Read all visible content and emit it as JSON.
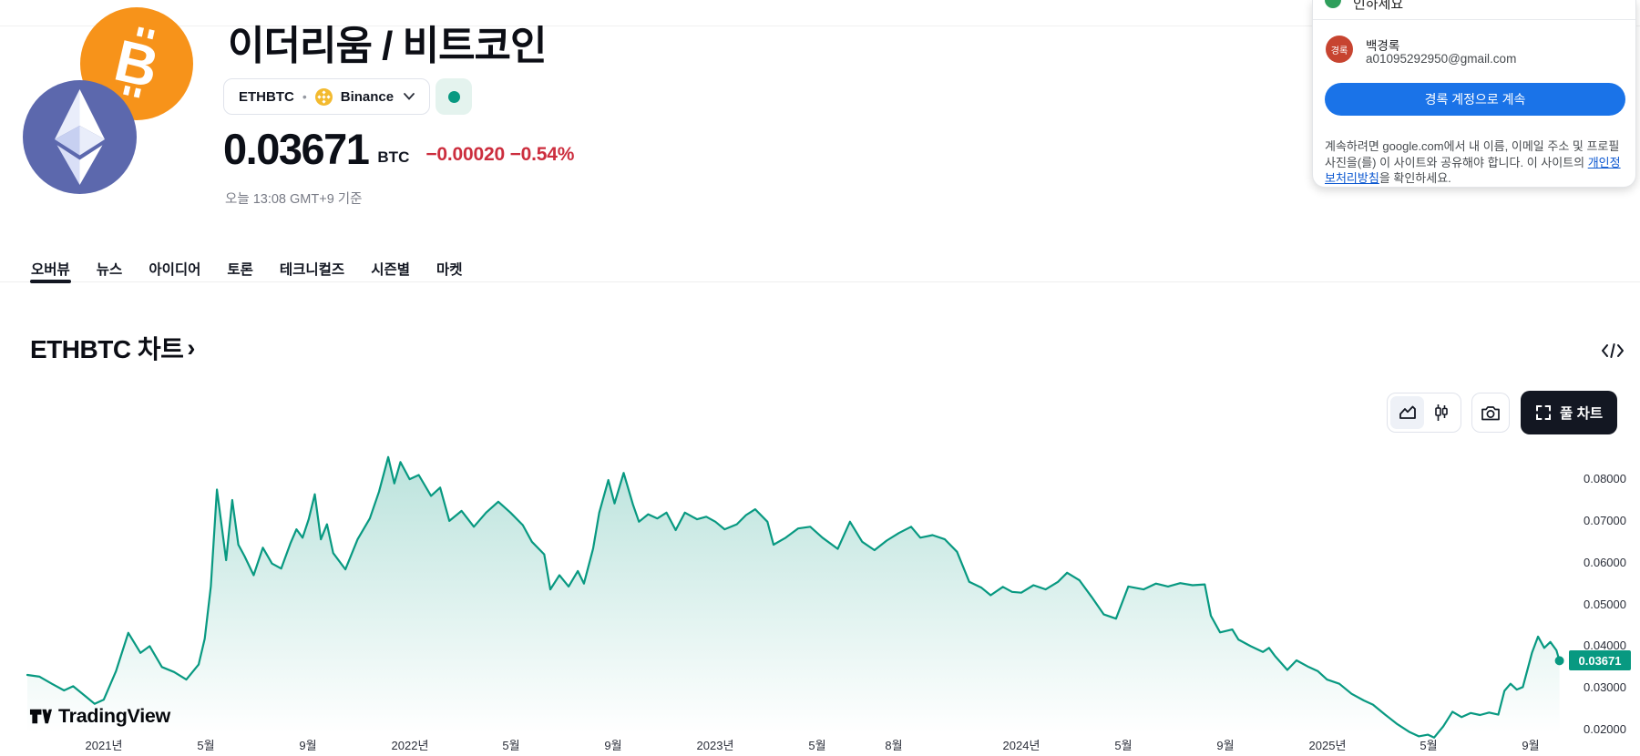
{
  "colors": {
    "accent_teal": "#089981",
    "negative_red": "#cc2e3e",
    "google_blue": "#1a73e8",
    "link_blue": "#0b57d0",
    "binance_gold": "#f3ba2f",
    "bitcoin_orange": "#f7931a",
    "ethereum_slate": "#5c68ad"
  },
  "header": {
    "title": "이더리움 / 비트코인",
    "symbol": "ETHBTC",
    "separator": "•",
    "exchange": "Binance",
    "price": "0.03671",
    "currency": "BTC",
    "change_abs": "−0.00020",
    "change_pct": "−0.54%",
    "timestamp": "오늘 13:08 GMT+9 기준"
  },
  "tabs": [
    {
      "id": "overview",
      "label": "오버뷰",
      "active": true
    },
    {
      "id": "news",
      "label": "뉴스",
      "active": false
    },
    {
      "id": "ideas",
      "label": "아이디어",
      "active": false
    },
    {
      "id": "discussion",
      "label": "토론",
      "active": false
    },
    {
      "id": "technicals",
      "label": "테크니컬즈",
      "active": false
    },
    {
      "id": "seasonal",
      "label": "시즌별",
      "active": false
    },
    {
      "id": "markets",
      "label": "마켓",
      "active": false
    }
  ],
  "section": {
    "heading": "ETHBTC 차트",
    "arrow": "›"
  },
  "toolbar": {
    "full_chart_label": "풀 차트"
  },
  "watermark": {
    "brand": "TradingView"
  },
  "google_popup": {
    "clipped_header_text": "인하세요",
    "account_initials": "경록",
    "account_name": "백경록",
    "account_email": "a01095292950@gmail.com",
    "continue_button": "경록 계정으로 계속",
    "disclaimer_before_link": "계속하려면 google.com에서 내 이름, 이메일 주소 및 프로필 사진을(를) 이 사이트와 공유해야 합니다. 이 사이트의 ",
    "privacy_link": "개인정보처리방침",
    "disclaimer_after_link": "을 확인하세요."
  },
  "chart_data": {
    "type": "area",
    "title": "ETHBTC 차트",
    "pair": "ETH/BTC",
    "legend_position": "none",
    "grid": false,
    "last_price": 0.03671,
    "last_price_label": "0.03671",
    "x_axis": {
      "t_min": 2020.75,
      "t_max": 2025.77,
      "ticks": [
        {
          "label": "2021년",
          "t": 2021.0
        },
        {
          "label": "5월",
          "t": 2021.333
        },
        {
          "label": "9월",
          "t": 2021.667
        },
        {
          "label": "2022년",
          "t": 2022.0
        },
        {
          "label": "5월",
          "t": 2022.333
        },
        {
          "label": "9월",
          "t": 2022.667
        },
        {
          "label": "2023년",
          "t": 2023.0
        },
        {
          "label": "5월",
          "t": 2023.333
        },
        {
          "label": "8월",
          "t": 2023.583
        },
        {
          "label": "2024년",
          "t": 2024.0
        },
        {
          "label": "5월",
          "t": 2024.333
        },
        {
          "label": "9월",
          "t": 2024.667
        },
        {
          "label": "2025년",
          "t": 2025.0
        },
        {
          "label": "5월",
          "t": 2025.333
        },
        {
          "label": "9월",
          "t": 2025.667
        }
      ]
    },
    "y_axis": {
      "min": 0.02,
      "max": 0.08,
      "ticks": [
        {
          "label": "0.08000",
          "v": 0.08
        },
        {
          "label": "0.07000",
          "v": 0.07
        },
        {
          "label": "0.06000",
          "v": 0.06
        },
        {
          "label": "0.05000",
          "v": 0.05
        },
        {
          "label": "0.04000",
          "v": 0.04
        },
        {
          "label": "0.03000",
          "v": 0.03
        },
        {
          "label": "0.02000",
          "v": 0.02
        }
      ]
    },
    "series": [
      [
        2020.75,
        0.0333
      ],
      [
        2020.79,
        0.0329
      ],
      [
        2020.83,
        0.0312
      ],
      [
        2020.87,
        0.0296
      ],
      [
        2020.9,
        0.0306
      ],
      [
        2020.94,
        0.0282
      ],
      [
        2020.97,
        0.0264
      ],
      [
        2021.0,
        0.0274
      ],
      [
        2021.04,
        0.0342
      ],
      [
        2021.08,
        0.0434
      ],
      [
        2021.12,
        0.0386
      ],
      [
        2021.15,
        0.0402
      ],
      [
        2021.19,
        0.0352
      ],
      [
        2021.23,
        0.034
      ],
      [
        2021.27,
        0.0322
      ],
      [
        2021.31,
        0.0358
      ],
      [
        2021.33,
        0.042
      ],
      [
        2021.35,
        0.0545
      ],
      [
        2021.37,
        0.0777
      ],
      [
        2021.4,
        0.0608
      ],
      [
        2021.42,
        0.0752
      ],
      [
        2021.44,
        0.0645
      ],
      [
        2021.46,
        0.0618
      ],
      [
        2021.49,
        0.0572
      ],
      [
        2021.52,
        0.0638
      ],
      [
        2021.55,
        0.06
      ],
      [
        2021.58,
        0.0588
      ],
      [
        2021.61,
        0.0648
      ],
      [
        2021.63,
        0.0682
      ],
      [
        2021.65,
        0.0662
      ],
      [
        2021.67,
        0.0706
      ],
      [
        2021.69,
        0.0766
      ],
      [
        2021.71,
        0.0658
      ],
      [
        2021.73,
        0.0694
      ],
      [
        2021.75,
        0.0625
      ],
      [
        2021.79,
        0.0586
      ],
      [
        2021.83,
        0.0658
      ],
      [
        2021.87,
        0.0708
      ],
      [
        2021.9,
        0.0772
      ],
      [
        2021.93,
        0.0855
      ],
      [
        2021.95,
        0.0792
      ],
      [
        2021.97,
        0.0843
      ],
      [
        2022.0,
        0.0802
      ],
      [
        2022.03,
        0.0812
      ],
      [
        2022.07,
        0.0762
      ],
      [
        2022.1,
        0.0782
      ],
      [
        2022.13,
        0.0702
      ],
      [
        2022.17,
        0.0726
      ],
      [
        2022.21,
        0.0688
      ],
      [
        2022.25,
        0.0722
      ],
      [
        2022.29,
        0.0748
      ],
      [
        2022.33,
        0.0722
      ],
      [
        2022.37,
        0.0692
      ],
      [
        2022.4,
        0.0652
      ],
      [
        2022.44,
        0.0622
      ],
      [
        2022.46,
        0.0538
      ],
      [
        2022.49,
        0.0572
      ],
      [
        2022.52,
        0.0545
      ],
      [
        2022.55,
        0.0582
      ],
      [
        2022.57,
        0.0552
      ],
      [
        2022.6,
        0.0636
      ],
      [
        2022.62,
        0.0722
      ],
      [
        2022.65,
        0.08
      ],
      [
        2022.67,
        0.0744
      ],
      [
        2022.7,
        0.0817
      ],
      [
        2022.73,
        0.0742
      ],
      [
        2022.75,
        0.07
      ],
      [
        2022.78,
        0.0718
      ],
      [
        2022.81,
        0.0708
      ],
      [
        2022.84,
        0.0722
      ],
      [
        2022.87,
        0.068
      ],
      [
        2022.9,
        0.0722
      ],
      [
        2022.94,
        0.0706
      ],
      [
        2022.97,
        0.0712
      ],
      [
        2023.0,
        0.07
      ],
      [
        2023.03,
        0.0682
      ],
      [
        2023.07,
        0.0694
      ],
      [
        2023.1,
        0.0716
      ],
      [
        2023.13,
        0.073
      ],
      [
        2023.17,
        0.07
      ],
      [
        2023.19,
        0.0645
      ],
      [
        2023.23,
        0.0662
      ],
      [
        2023.27,
        0.0684
      ],
      [
        2023.31,
        0.0688
      ],
      [
        2023.35,
        0.0662
      ],
      [
        2023.4,
        0.0635
      ],
      [
        2023.44,
        0.07
      ],
      [
        2023.48,
        0.0652
      ],
      [
        2023.52,
        0.0632
      ],
      [
        2023.56,
        0.0655
      ],
      [
        2023.6,
        0.0673
      ],
      [
        2023.64,
        0.0688
      ],
      [
        2023.67,
        0.0662
      ],
      [
        2023.71,
        0.0668
      ],
      [
        2023.75,
        0.0658
      ],
      [
        2023.79,
        0.0628
      ],
      [
        2023.83,
        0.0556
      ],
      [
        2023.87,
        0.0542
      ],
      [
        2023.9,
        0.0524
      ],
      [
        2023.94,
        0.0544
      ],
      [
        2023.97,
        0.0532
      ],
      [
        2024.0,
        0.053
      ],
      [
        2024.04,
        0.0548
      ],
      [
        2024.08,
        0.0538
      ],
      [
        2024.12,
        0.0556
      ],
      [
        2024.15,
        0.0578
      ],
      [
        2024.19,
        0.056
      ],
      [
        2024.23,
        0.052
      ],
      [
        2024.27,
        0.0478
      ],
      [
        2024.31,
        0.0468
      ],
      [
        2024.35,
        0.0545
      ],
      [
        2024.4,
        0.0538
      ],
      [
        2024.44,
        0.0552
      ],
      [
        2024.48,
        0.0545
      ],
      [
        2024.52,
        0.0553
      ],
      [
        2024.56,
        0.0548
      ],
      [
        2024.6,
        0.055
      ],
      [
        2024.62,
        0.0475
      ],
      [
        2024.65,
        0.0435
      ],
      [
        2024.69,
        0.0442
      ],
      [
        2024.71,
        0.0418
      ],
      [
        2024.75,
        0.0402
      ],
      [
        2024.79,
        0.0388
      ],
      [
        2024.81,
        0.0398
      ],
      [
        2024.83,
        0.0378
      ],
      [
        2024.87,
        0.0345
      ],
      [
        2024.9,
        0.0368
      ],
      [
        2024.94,
        0.0352
      ],
      [
        2024.97,
        0.0342
      ],
      [
        2025.0,
        0.0322
      ],
      [
        2025.04,
        0.0312
      ],
      [
        2025.08,
        0.0288
      ],
      [
        2025.12,
        0.0272
      ],
      [
        2025.15,
        0.0262
      ],
      [
        2025.19,
        0.0238
      ],
      [
        2025.23,
        0.0215
      ],
      [
        2025.27,
        0.0196
      ],
      [
        2025.3,
        0.0186
      ],
      [
        2025.33,
        0.019
      ],
      [
        2025.35,
        0.0183
      ],
      [
        2025.38,
        0.021
      ],
      [
        2025.41,
        0.0245
      ],
      [
        2025.44,
        0.0232
      ],
      [
        2025.47,
        0.0242
      ],
      [
        2025.5,
        0.0237
      ],
      [
        2025.53,
        0.0243
      ],
      [
        2025.56,
        0.0238
      ],
      [
        2025.58,
        0.0295
      ],
      [
        2025.6,
        0.0312
      ],
      [
        2025.62,
        0.0298
      ],
      [
        2025.64,
        0.0304
      ],
      [
        2025.67,
        0.0386
      ],
      [
        2025.69,
        0.0425
      ],
      [
        2025.71,
        0.0398
      ],
      [
        2025.73,
        0.0412
      ],
      [
        2025.75,
        0.0392
      ],
      [
        2025.76,
        0.03671
      ]
    ],
    "colors": {
      "line": "#089981",
      "fill_top": "rgba(8,153,129,0.28)",
      "fill_bottom": "rgba(8,153,129,0)",
      "badge_bg": "#089981",
      "badge_text": "#ffffff"
    }
  }
}
